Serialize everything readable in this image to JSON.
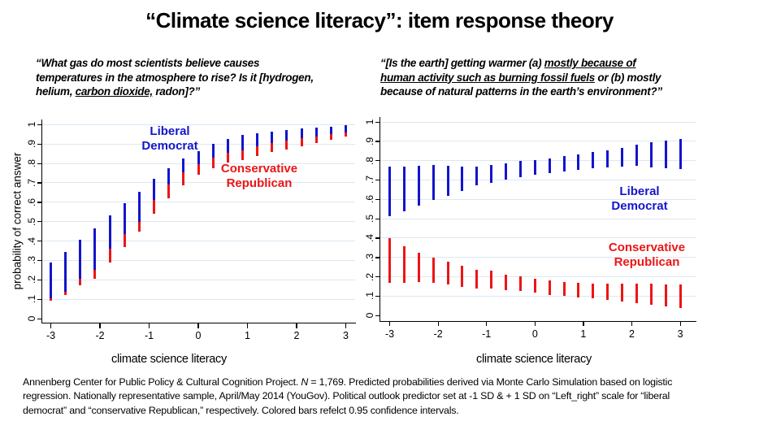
{
  "title": "“Climate science literacy”: item response theory",
  "colors": {
    "blue": "#1414cc",
    "red": "#ed1515",
    "gridline": "#dce8f2",
    "axis": "#000000"
  },
  "questions": {
    "left": {
      "lines": [
        [
          {
            "t": "“What gas do most scientists believe causes"
          }
        ],
        [
          {
            "t": "temperatures in the atmosphere to rise? Is it [hydrogen,"
          }
        ],
        [
          {
            "t": "helium, "
          },
          {
            "t": "carbon dioxide,",
            "u": 1
          },
          {
            "t": " radon]?”"
          }
        ]
      ]
    },
    "right": {
      "lines": [
        [
          {
            "t": "“[Is the earth] getting warmer (a) "
          },
          {
            "t": "mostly because of",
            "u": 1
          }
        ],
        [
          {
            "t": "human activity such as burning fossil fuels",
            "u": 1
          },
          {
            "t": " or (b) mostly"
          }
        ],
        [
          {
            "t": "because of natural patterns in the earth’s environment?”"
          }
        ]
      ]
    }
  },
  "panels": {
    "left": {
      "xlabel": "climate science literacy",
      "ylabel": "probability of correct answer",
      "legend": {
        "blue": [
          "Liberal",
          "Democrat"
        ],
        "red": [
          "Conservative",
          "Republican"
        ]
      }
    },
    "right": {
      "xlabel": "climate science literacy",
      "legend": {
        "blue": [
          "Liberal",
          "Democrat"
        ],
        "red": [
          "Conservative",
          "Republican"
        ]
      }
    }
  },
  "footnote": {
    "lines": [
      [
        {
          "t": "Annenberg  Center  for Public Policy & Cultural Cognition Project.  "
        },
        {
          "t": "N",
          "i": 1
        },
        {
          "t": " = 1,769. Predicted probabilities derived via Monte Carlo Simulation based on logistic"
        }
      ],
      [
        {
          "t": "regression.  Nationally representative sample, April/May 2014 (YouGov).   Political outlook predictor set at -1 SD &  + 1 SD on “Left_right”  scale for “liberal"
        }
      ],
      [
        {
          "t": "democrat” and “conservative Republican,” respectively. Colored bars refelct 0.95 confidence intervals."
        }
      ]
    ]
  },
  "chart_data": [
    {
      "type": "bar",
      "subtype": "confidence-interval-range-bars",
      "question": "“What gas do most scientists believe causes temperatures in the atmosphere to rise? Is it [hydrogen, helium, carbon dioxide, radon]?”",
      "xlabel": "climate science literacy",
      "ylabel": "probability of correct answer",
      "xlim": [
        -3.3,
        3.3
      ],
      "ylim": [
        0,
        1
      ],
      "grid": true,
      "x_ticks": [
        -3,
        -2,
        -1,
        0,
        1,
        2,
        3
      ],
      "y_ticks": [
        0,
        0.1,
        0.2,
        0.3,
        0.4,
        0.5,
        0.6,
        0.7,
        0.8,
        0.9,
        1
      ],
      "y_tick_labels": [
        "0",
        ".1",
        ".2",
        ".3",
        ".4",
        ".5",
        ".6",
        ".7",
        ".8",
        ".9",
        "1"
      ],
      "x": [
        -3,
        -2.7,
        -2.4,
        -2.1,
        -1.8,
        -1.5,
        -1.2,
        -0.9,
        -0.6,
        -0.3,
        0,
        0.3,
        0.6,
        0.9,
        1.2,
        1.5,
        1.8,
        2.1,
        2.4,
        2.7,
        3
      ],
      "series": [
        {
          "name": "Liberal Democrat",
          "color": "#1414cc",
          "lo": [
            0.105,
            0.14,
            0.205,
            0.25,
            0.36,
            0.435,
            0.5,
            0.61,
            0.69,
            0.755,
            0.795,
            0.828,
            0.855,
            0.868,
            0.887,
            0.903,
            0.916,
            0.928,
            0.94,
            0.95,
            0.958
          ],
          "hi": [
            0.29,
            0.345,
            0.405,
            0.465,
            0.53,
            0.595,
            0.655,
            0.72,
            0.775,
            0.825,
            0.865,
            0.9,
            0.925,
            0.945,
            0.955,
            0.965,
            0.973,
            0.979,
            0.985,
            0.99,
            0.995
          ]
        },
        {
          "name": "Conservative Republican",
          "color": "#ed1515",
          "lo": [
            0.093,
            0.12,
            0.17,
            0.205,
            0.29,
            0.37,
            0.45,
            0.54,
            0.62,
            0.685,
            0.74,
            0.775,
            0.805,
            0.818,
            0.838,
            0.858,
            0.872,
            0.888,
            0.905,
            0.92,
            0.938
          ],
          "hi": [
            0.105,
            0.14,
            0.205,
            0.25,
            0.36,
            0.435,
            0.5,
            0.61,
            0.69,
            0.755,
            0.795,
            0.828,
            0.855,
            0.868,
            0.887,
            0.903,
            0.916,
            0.928,
            0.94,
            0.95,
            0.958
          ]
        }
      ],
      "note": "colored bars are 0.95 confidence intervals; red bars overlap behind blue"
    },
    {
      "type": "bar",
      "subtype": "confidence-interval-range-bars",
      "question": "“[Is the earth] getting warmer (a) mostly because of human activity such as burning fossil fuels or (b) mostly because of natural patterns in the earth’s environment?”",
      "xlabel": "climate science literacy",
      "ylabel": "probability of correct answer",
      "xlim": [
        -3.3,
        3.3
      ],
      "ylim": [
        0,
        1
      ],
      "grid": true,
      "x_ticks": [
        -3,
        -2,
        -1,
        0,
        1,
        2,
        3
      ],
      "y_ticks": [
        0,
        0.1,
        0.2,
        0.3,
        0.4,
        0.5,
        0.6,
        0.7,
        0.8,
        0.9,
        1
      ],
      "y_tick_labels": [
        "0",
        ".1",
        ".2",
        ".3",
        ".4",
        ".5",
        ".6",
        ".7",
        ".8",
        ".9",
        "1"
      ],
      "x": [
        -3,
        -2.7,
        -2.4,
        -2.1,
        -1.8,
        -1.5,
        -1.2,
        -0.9,
        -0.6,
        -0.3,
        0,
        0.3,
        0.6,
        0.9,
        1.2,
        1.5,
        1.8,
        2.1,
        2.4,
        2.7,
        3
      ],
      "series": [
        {
          "name": "Liberal Democrat",
          "color": "#1414cc",
          "lo": [
            0.513,
            0.538,
            0.566,
            0.597,
            0.62,
            0.645,
            0.671,
            0.685,
            0.702,
            0.713,
            0.727,
            0.737,
            0.745,
            0.752,
            0.76,
            0.766,
            0.77,
            0.772,
            0.766,
            0.762,
            0.755
          ],
          "hi": [
            0.77,
            0.77,
            0.773,
            0.776,
            0.772,
            0.77,
            0.769,
            0.776,
            0.786,
            0.797,
            0.804,
            0.811,
            0.822,
            0.833,
            0.845,
            0.853,
            0.867,
            0.881,
            0.895,
            0.902,
            0.912
          ]
        },
        {
          "name": "Conservative Republican",
          "color": "#ed1515",
          "lo": [
            0.17,
            0.17,
            0.172,
            0.168,
            0.16,
            0.15,
            0.14,
            0.14,
            0.133,
            0.126,
            0.119,
            0.107,
            0.1,
            0.095,
            0.088,
            0.08,
            0.072,
            0.065,
            0.056,
            0.046,
            0.038
          ],
          "hi": [
            0.401,
            0.36,
            0.325,
            0.3,
            0.28,
            0.258,
            0.238,
            0.231,
            0.21,
            0.203,
            0.191,
            0.182,
            0.172,
            0.168,
            0.167,
            0.166,
            0.165,
            0.165,
            0.164,
            0.161,
            0.161
          ]
        }
      ],
      "note": "colored bars are 0.95 confidence intervals"
    }
  ]
}
